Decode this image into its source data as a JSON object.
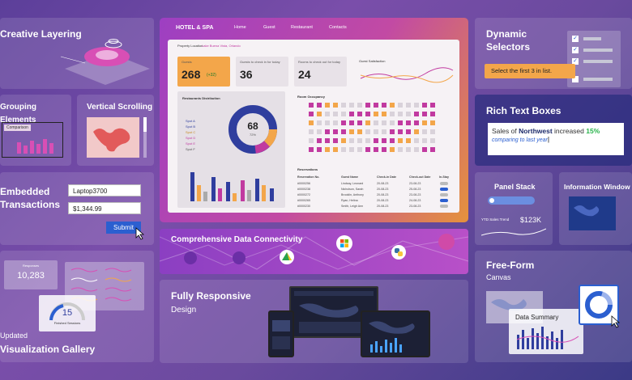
{
  "colors": {
    "accent_orange": "#f3a64a",
    "accent_blue": "#2b5fd0",
    "accent_green": "#27b34a",
    "dashboard_navy": "#2f3e9e"
  },
  "tiles": {
    "creative_layering": {
      "title": "Creative Layering"
    },
    "grouping_elements": {
      "title": "Grouping Elements",
      "chip": "Comparison"
    },
    "vertical_scrolling": {
      "title": "Vertical Scrolling"
    },
    "embedded_transactions": {
      "title": "Embedded Transactions",
      "input1": "Laptop3700",
      "input2": "$1,344.99",
      "submit": "Submit"
    },
    "visualization_gallery": {
      "updated": "Updated",
      "title": "Visualization Gallery",
      "card1_label": "Responses",
      "card1_value": "10,283",
      "gauge_value": "15",
      "gauge_label": "Finished Sessions"
    },
    "dynamic_selectors": {
      "title": "Dynamic Selectors",
      "tooltip": "Select the first 3 in list."
    },
    "rich_text_boxes": {
      "title": "Rich Text Boxes",
      "t1": "Sales of",
      "t2": "Northwest",
      "t3": "increased",
      "t4": "15%",
      "t5": "comparing to last year"
    },
    "panel_stack": {
      "title": "Panel Stack",
      "trend_label": "YTD Sales Trend",
      "trend_value": "$123K"
    },
    "information_window": {
      "title": "Information Window"
    },
    "free_form": {
      "title": "Free-Form",
      "subtitle": "Canvas",
      "summary": "Data Summary"
    },
    "data_connectivity": {
      "title": "Comprehensive Data Connectivity"
    },
    "fully_responsive": {
      "title": "Fully Responsive",
      "subtitle": "Design"
    }
  },
  "dashboard": {
    "brand": "HOTEL & SPA",
    "nav": [
      "Home",
      "Guest",
      "Restaurant",
      "Contacts"
    ],
    "location_label": "Property Location:",
    "location_value": "Lake Buena Vista, Orlando",
    "kpis": [
      {
        "label": "Guests",
        "value": "268",
        "delta": "(+32)"
      },
      {
        "label": "Guests to check in for today",
        "value": "36"
      },
      {
        "label": "Rooms to check out for today",
        "value": "24"
      }
    ],
    "satisfaction_label": "Guest Satisfaction",
    "restaurants_title": "Restaurants Distribution",
    "donut_value": "68",
    "donut_pct": "72%",
    "legend": [
      "Spot A",
      "Spot B",
      "Spot C",
      "Spot D",
      "Spot E",
      "Spot F"
    ],
    "occupancy_title": "Room Occupancy",
    "reservations_title": "Reservations",
    "res_headers": [
      "Reservation No.",
      "Guest Name",
      "Check-in Date",
      "Check-out Date",
      "In-Stay"
    ],
    "res_rows": [
      [
        "#0000256",
        "Lindsay, Leonard",
        "20-08-23",
        "23-08-23"
      ],
      [
        "#0000238",
        "Nicholson, Sarah",
        "20-08-23",
        "25-08-23"
      ],
      [
        "#0000272",
        "Brooklin, Anthony",
        "20-08-23",
        "23-08-23"
      ],
      [
        "#0000265",
        "Ryan, Helina",
        "20-08-23",
        "24-08-23"
      ],
      [
        "#0000230",
        "Smith, Leigh Ann",
        "20-08-23",
        "23-08-23"
      ]
    ]
  }
}
